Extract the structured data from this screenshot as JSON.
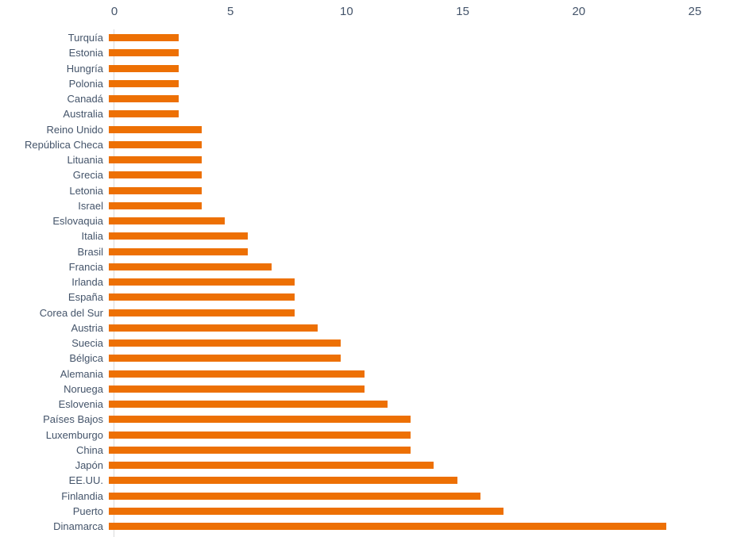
{
  "chart_data": {
    "type": "bar",
    "orientation": "horizontal",
    "title": "",
    "xlabel": "",
    "ylabel": "",
    "categories": [
      "Turquía",
      "Estonia",
      "Hungría",
      "Polonia",
      "Canadá",
      "Australia",
      "Reino Unido",
      "República Checa",
      "Lituania",
      "Grecia",
      "Letonia",
      "Israel",
      "Eslovaquia",
      "Italia",
      "Brasil",
      "Francia",
      "Irlanda",
      "España",
      "Corea del Sur",
      "Austria",
      "Suecia",
      "Bélgica",
      "Alemania",
      "Noruega",
      "Eslovenia",
      "Países Bajos",
      "Luxemburgo",
      "China",
      "Japón",
      "EE.UU.",
      "Finlandia",
      "Puerto",
      "Dinamarca"
    ],
    "values": [
      3,
      3,
      3,
      3,
      3,
      3,
      4,
      4,
      4,
      4,
      4,
      4,
      5,
      6,
      6,
      7,
      8,
      8,
      8,
      9,
      10,
      10,
      11,
      11,
      12,
      13,
      13,
      13,
      14,
      15,
      16,
      17,
      24
    ],
    "x_ticks": [
      0,
      5,
      10,
      15,
      20,
      25
    ],
    "xlim": [
      0,
      25
    ],
    "tick_position": "top",
    "grid": false,
    "legend": false,
    "colors": {
      "bar": "#ED7004",
      "text": "#44546A",
      "axis_line": "#D9D9D9"
    }
  }
}
